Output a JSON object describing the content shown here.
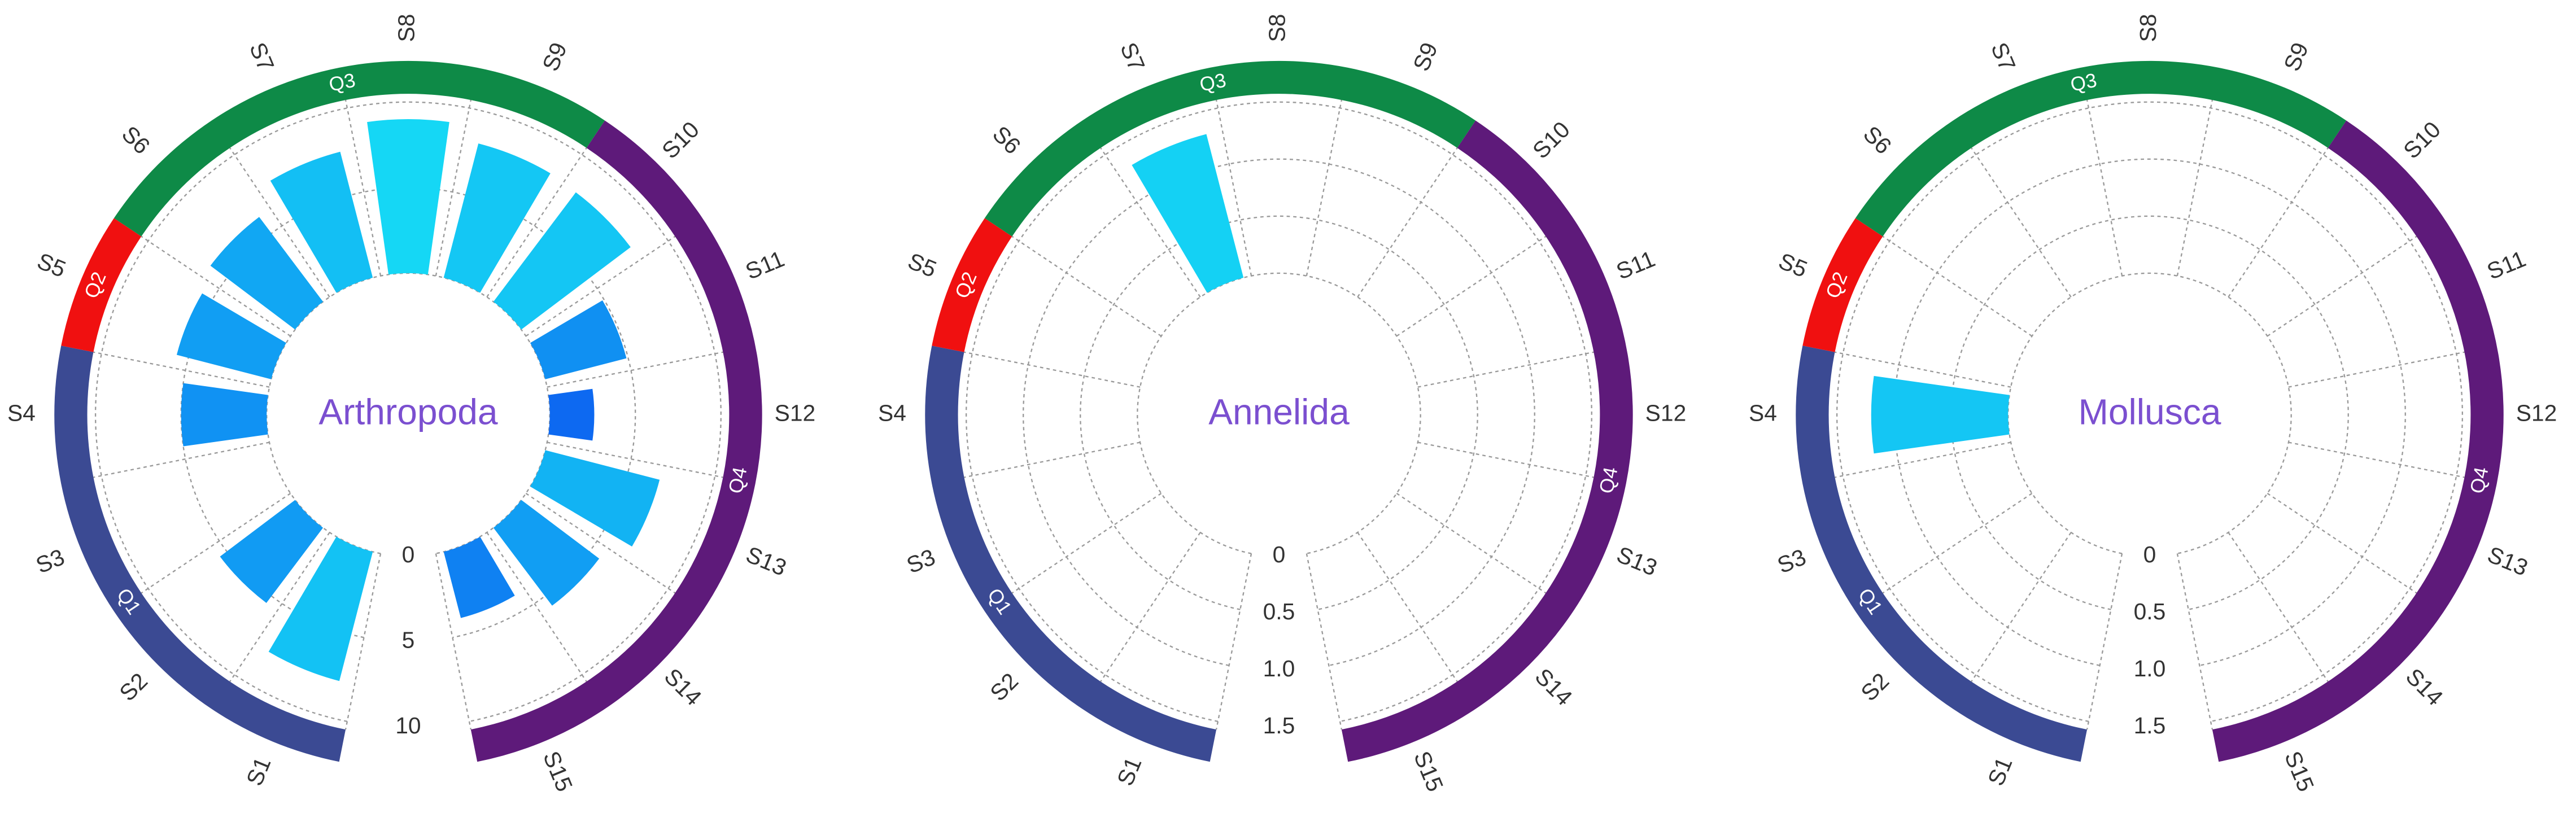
{
  "chart_data": [
    {
      "type": "polar_bar",
      "title": "Arthropoda",
      "categories": [
        "S1",
        "S2",
        "S3",
        "S4",
        "S5",
        "S6",
        "S7",
        "S8",
        "S9",
        "S10",
        "S11",
        "S12",
        "S13",
        "S14",
        "S15"
      ],
      "values": [
        7.8,
        5.5,
        0,
        5.0,
        5.7,
        6.2,
        7.6,
        9.0,
        8.1,
        8.0,
        4.9,
        2.6,
        6.9,
        5.7,
        4.0
      ],
      "ylim": [
        0,
        10
      ],
      "yticks": [
        0,
        5,
        10
      ],
      "grid": true,
      "color_scale": [
        "#0a3cf0",
        "#16e8f5"
      ],
      "groups": [
        {
          "name": "Q1",
          "color": "#3b4a93",
          "members": [
            "S1",
            "S2",
            "S3",
            "S4"
          ]
        },
        {
          "name": "Q2",
          "color": "#f01010",
          "members": [
            "S5"
          ]
        },
        {
          "name": "Q3",
          "color": "#0e8a47",
          "members": [
            "S6",
            "S7",
            "S8",
            "S9"
          ]
        },
        {
          "name": "Q4",
          "color": "#5e1a7a",
          "members": [
            "S10",
            "S11",
            "S12",
            "S13",
            "S14",
            "S15"
          ]
        }
      ]
    },
    {
      "type": "polar_bar",
      "title": "Annelida",
      "categories": [
        "S1",
        "S2",
        "S3",
        "S4",
        "S5",
        "S6",
        "S7",
        "S8",
        "S9",
        "S10",
        "S11",
        "S12",
        "S13",
        "S14",
        "S15"
      ],
      "values": [
        0,
        0,
        0,
        0,
        0,
        0,
        1.3,
        0,
        0,
        0,
        0,
        0,
        0,
        0,
        0
      ],
      "ylim": [
        0,
        1.5
      ],
      "yticks": [
        0,
        0.5,
        {
          "value": 1,
          "label": "1.0"
        },
        1.5
      ],
      "grid": true,
      "color_scale": [
        "#0a3cf0",
        "#16e8f5"
      ],
      "groups": [
        {
          "name": "Q1",
          "color": "#3b4a93",
          "members": [
            "S1",
            "S2",
            "S3",
            "S4"
          ]
        },
        {
          "name": "Q2",
          "color": "#f01010",
          "members": [
            "S5"
          ]
        },
        {
          "name": "Q3",
          "color": "#0e8a47",
          "members": [
            "S6",
            "S7",
            "S8",
            "S9"
          ]
        },
        {
          "name": "Q4",
          "color": "#5e1a7a",
          "members": [
            "S10",
            "S11",
            "S12",
            "S13",
            "S14",
            "S15"
          ]
        }
      ]
    },
    {
      "type": "polar_bar",
      "title": "Mollusca",
      "categories": [
        "S1",
        "S2",
        "S3",
        "S4",
        "S5",
        "S6",
        "S7",
        "S8",
        "S9",
        "S10",
        "S11",
        "S12",
        "S13",
        "S14",
        "S15"
      ],
      "values": [
        0,
        0,
        0,
        1.2,
        0,
        0,
        0,
        0,
        0,
        0,
        0,
        0,
        0,
        0,
        0
      ],
      "ylim": [
        0,
        1.5
      ],
      "yticks": [
        0,
        0.5,
        {
          "value": 1,
          "label": "1.0"
        },
        1.5
      ],
      "grid": true,
      "color_scale": [
        "#0a3cf0",
        "#16e8f5"
      ],
      "groups": [
        {
          "name": "Q1",
          "color": "#3b4a93",
          "members": [
            "S1",
            "S2",
            "S3",
            "S4"
          ]
        },
        {
          "name": "Q2",
          "color": "#f01010",
          "members": [
            "S5"
          ]
        },
        {
          "name": "Q3",
          "color": "#0e8a47",
          "members": [
            "S6",
            "S7",
            "S8",
            "S9"
          ]
        },
        {
          "name": "Q4",
          "color": "#5e1a7a",
          "members": [
            "S10",
            "S11",
            "S12",
            "S13",
            "S14",
            "S15"
          ]
        }
      ]
    }
  ]
}
